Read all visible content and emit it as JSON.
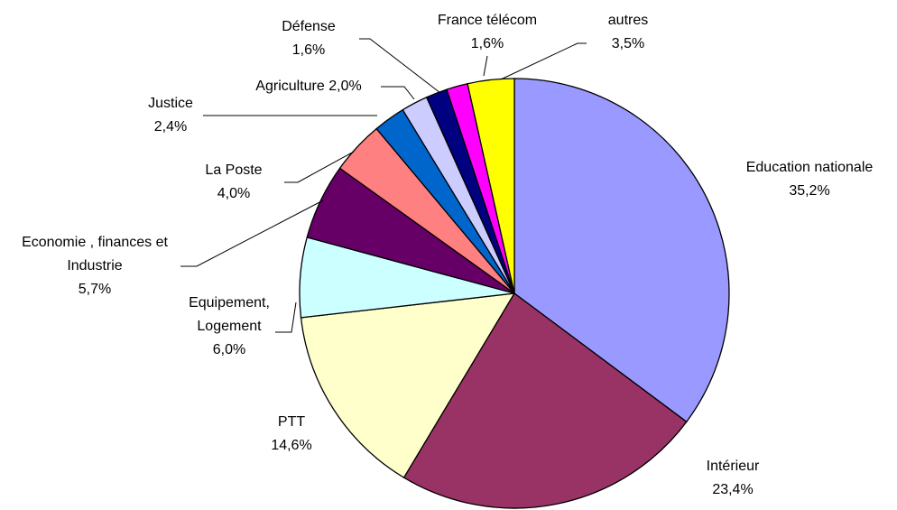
{
  "chart_data": {
    "type": "pie",
    "categories": [
      "Education nationale",
      "Intérieur",
      "PTT",
      "Equipement, Logement",
      "Economie , finances et Industrie",
      "La Poste",
      "Justice",
      "Agriculture",
      "Défense",
      "France télécom",
      "autres"
    ],
    "values": [
      35.2,
      23.4,
      14.6,
      6.0,
      5.7,
      4.0,
      2.4,
      2.0,
      1.6,
      1.6,
      3.5
    ],
    "value_labels": [
      "35,2%",
      "23,4%",
      "14,6%",
      "6,0%",
      "5,7%",
      "4,0%",
      "2,4%",
      "2,0%",
      "1,6%",
      "1,6%",
      "3,5%"
    ],
    "colors": [
      "#9999ff",
      "#993366",
      "#ffffcc",
      "#ccffff",
      "#660066",
      "#ff8080",
      "#0066cc",
      "#ccccff",
      "#000080",
      "#ff00ff",
      "#ffff00"
    ]
  }
}
